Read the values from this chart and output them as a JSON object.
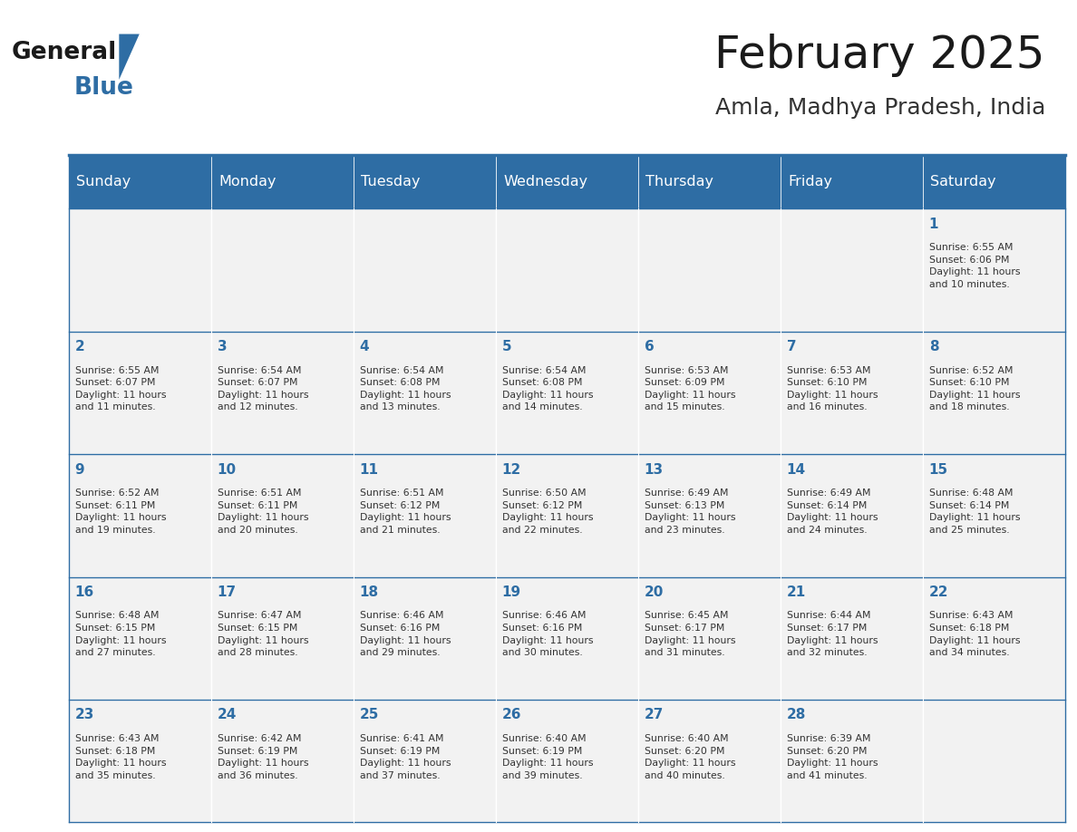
{
  "title": "February 2025",
  "subtitle": "Amla, Madhya Pradesh, India",
  "header_bg_color": "#2E6DA4",
  "header_text_color": "#FFFFFF",
  "cell_bg_color": "#F2F2F2",
  "title_color": "#1a1a1a",
  "subtitle_color": "#333333",
  "day_number_color": "#2E6DA4",
  "cell_text_color": "#333333",
  "border_color": "#2E6DA4",
  "days_of_week": [
    "Sunday",
    "Monday",
    "Tuesday",
    "Wednesday",
    "Thursday",
    "Friday",
    "Saturday"
  ],
  "weeks": [
    [
      {
        "day": 0,
        "text": ""
      },
      {
        "day": 0,
        "text": ""
      },
      {
        "day": 0,
        "text": ""
      },
      {
        "day": 0,
        "text": ""
      },
      {
        "day": 0,
        "text": ""
      },
      {
        "day": 0,
        "text": ""
      },
      {
        "day": 1,
        "text": "Sunrise: 6:55 AM\nSunset: 6:06 PM\nDaylight: 11 hours\nand 10 minutes."
      }
    ],
    [
      {
        "day": 2,
        "text": "Sunrise: 6:55 AM\nSunset: 6:07 PM\nDaylight: 11 hours\nand 11 minutes."
      },
      {
        "day": 3,
        "text": "Sunrise: 6:54 AM\nSunset: 6:07 PM\nDaylight: 11 hours\nand 12 minutes."
      },
      {
        "day": 4,
        "text": "Sunrise: 6:54 AM\nSunset: 6:08 PM\nDaylight: 11 hours\nand 13 minutes."
      },
      {
        "day": 5,
        "text": "Sunrise: 6:54 AM\nSunset: 6:08 PM\nDaylight: 11 hours\nand 14 minutes."
      },
      {
        "day": 6,
        "text": "Sunrise: 6:53 AM\nSunset: 6:09 PM\nDaylight: 11 hours\nand 15 minutes."
      },
      {
        "day": 7,
        "text": "Sunrise: 6:53 AM\nSunset: 6:10 PM\nDaylight: 11 hours\nand 16 minutes."
      },
      {
        "day": 8,
        "text": "Sunrise: 6:52 AM\nSunset: 6:10 PM\nDaylight: 11 hours\nand 18 minutes."
      }
    ],
    [
      {
        "day": 9,
        "text": "Sunrise: 6:52 AM\nSunset: 6:11 PM\nDaylight: 11 hours\nand 19 minutes."
      },
      {
        "day": 10,
        "text": "Sunrise: 6:51 AM\nSunset: 6:11 PM\nDaylight: 11 hours\nand 20 minutes."
      },
      {
        "day": 11,
        "text": "Sunrise: 6:51 AM\nSunset: 6:12 PM\nDaylight: 11 hours\nand 21 minutes."
      },
      {
        "day": 12,
        "text": "Sunrise: 6:50 AM\nSunset: 6:12 PM\nDaylight: 11 hours\nand 22 minutes."
      },
      {
        "day": 13,
        "text": "Sunrise: 6:49 AM\nSunset: 6:13 PM\nDaylight: 11 hours\nand 23 minutes."
      },
      {
        "day": 14,
        "text": "Sunrise: 6:49 AM\nSunset: 6:14 PM\nDaylight: 11 hours\nand 24 minutes."
      },
      {
        "day": 15,
        "text": "Sunrise: 6:48 AM\nSunset: 6:14 PM\nDaylight: 11 hours\nand 25 minutes."
      }
    ],
    [
      {
        "day": 16,
        "text": "Sunrise: 6:48 AM\nSunset: 6:15 PM\nDaylight: 11 hours\nand 27 minutes."
      },
      {
        "day": 17,
        "text": "Sunrise: 6:47 AM\nSunset: 6:15 PM\nDaylight: 11 hours\nand 28 minutes."
      },
      {
        "day": 18,
        "text": "Sunrise: 6:46 AM\nSunset: 6:16 PM\nDaylight: 11 hours\nand 29 minutes."
      },
      {
        "day": 19,
        "text": "Sunrise: 6:46 AM\nSunset: 6:16 PM\nDaylight: 11 hours\nand 30 minutes."
      },
      {
        "day": 20,
        "text": "Sunrise: 6:45 AM\nSunset: 6:17 PM\nDaylight: 11 hours\nand 31 minutes."
      },
      {
        "day": 21,
        "text": "Sunrise: 6:44 AM\nSunset: 6:17 PM\nDaylight: 11 hours\nand 32 minutes."
      },
      {
        "day": 22,
        "text": "Sunrise: 6:43 AM\nSunset: 6:18 PM\nDaylight: 11 hours\nand 34 minutes."
      }
    ],
    [
      {
        "day": 23,
        "text": "Sunrise: 6:43 AM\nSunset: 6:18 PM\nDaylight: 11 hours\nand 35 minutes."
      },
      {
        "day": 24,
        "text": "Sunrise: 6:42 AM\nSunset: 6:19 PM\nDaylight: 11 hours\nand 36 minutes."
      },
      {
        "day": 25,
        "text": "Sunrise: 6:41 AM\nSunset: 6:19 PM\nDaylight: 11 hours\nand 37 minutes."
      },
      {
        "day": 26,
        "text": "Sunrise: 6:40 AM\nSunset: 6:19 PM\nDaylight: 11 hours\nand 39 minutes."
      },
      {
        "day": 27,
        "text": "Sunrise: 6:40 AM\nSunset: 6:20 PM\nDaylight: 11 hours\nand 40 minutes."
      },
      {
        "day": 28,
        "text": "Sunrise: 6:39 AM\nSunset: 6:20 PM\nDaylight: 11 hours\nand 41 minutes."
      },
      {
        "day": 0,
        "text": ""
      }
    ]
  ]
}
